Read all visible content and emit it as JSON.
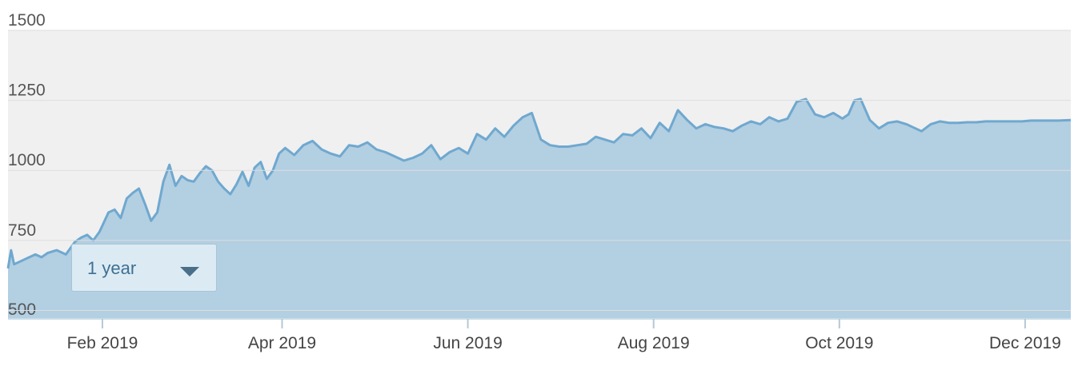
{
  "chart_data": {
    "type": "area",
    "y_ticks": [
      "500",
      "750",
      "1000",
      "1250",
      "1500"
    ],
    "ylim": [
      470,
      1500
    ],
    "x_tick_labels": [
      "Feb 2019",
      "Apr 2019",
      "Jun 2019",
      "Aug 2019",
      "Oct 2019",
      "Dec 2019"
    ],
    "x_tick_dates": [
      "2019-02-01",
      "2019-04-01",
      "2019-06-01",
      "2019-08-01",
      "2019-10-01",
      "2019-12-01"
    ],
    "xlim": [
      "2019-01-01",
      "2019-12-16"
    ],
    "grid": true,
    "colors": {
      "line": "#6fa8cf",
      "fill": "#b3cfe2",
      "plot_background_upper": "#f0f0f0",
      "gridline": "#dedede"
    },
    "series": [
      {
        "x": [
          "2019-01-01",
          "2019-01-02",
          "2019-01-03",
          "2019-01-05",
          "2019-01-08",
          "2019-01-10",
          "2019-01-12",
          "2019-01-14",
          "2019-01-17",
          "2019-01-20",
          "2019-01-23",
          "2019-01-25",
          "2019-01-27",
          "2019-01-29",
          "2019-01-31",
          "2019-02-03",
          "2019-02-05",
          "2019-02-07",
          "2019-02-09",
          "2019-02-11",
          "2019-02-13",
          "2019-02-15",
          "2019-02-17",
          "2019-02-19",
          "2019-02-21",
          "2019-02-23",
          "2019-02-25",
          "2019-02-27",
          "2019-03-01",
          "2019-03-03",
          "2019-03-05",
          "2019-03-07",
          "2019-03-09",
          "2019-03-11",
          "2019-03-13",
          "2019-03-15",
          "2019-03-17",
          "2019-03-19",
          "2019-03-21",
          "2019-03-23",
          "2019-03-25",
          "2019-03-27",
          "2019-03-29",
          "2019-03-31",
          "2019-04-02",
          "2019-04-05",
          "2019-04-08",
          "2019-04-11",
          "2019-04-14",
          "2019-04-17",
          "2019-04-20",
          "2019-04-23",
          "2019-04-26",
          "2019-04-29",
          "2019-05-02",
          "2019-05-05",
          "2019-05-08",
          "2019-05-11",
          "2019-05-14",
          "2019-05-17",
          "2019-05-20",
          "2019-05-23",
          "2019-05-26",
          "2019-05-29",
          "2019-06-01",
          "2019-06-04",
          "2019-06-07",
          "2019-06-10",
          "2019-06-13",
          "2019-06-16",
          "2019-06-19",
          "2019-06-22",
          "2019-06-25",
          "2019-06-28",
          "2019-07-01",
          "2019-07-04",
          "2019-07-07",
          "2019-07-10",
          "2019-07-13",
          "2019-07-16",
          "2019-07-19",
          "2019-07-22",
          "2019-07-25",
          "2019-07-28",
          "2019-07-31",
          "2019-08-03",
          "2019-08-06",
          "2019-08-09",
          "2019-08-12",
          "2019-08-15",
          "2019-08-18",
          "2019-08-21",
          "2019-08-24",
          "2019-08-27",
          "2019-08-30",
          "2019-09-02",
          "2019-09-05",
          "2019-09-08",
          "2019-09-11",
          "2019-09-14",
          "2019-09-17",
          "2019-09-20",
          "2019-09-23",
          "2019-09-26",
          "2019-09-29",
          "2019-10-02",
          "2019-10-04",
          "2019-10-06",
          "2019-10-08",
          "2019-10-11",
          "2019-10-14",
          "2019-10-17",
          "2019-10-20",
          "2019-10-23",
          "2019-10-26",
          "2019-10-28",
          "2019-10-31",
          "2019-11-03",
          "2019-11-06",
          "2019-11-09",
          "2019-11-12",
          "2019-11-15",
          "2019-11-18",
          "2019-11-21",
          "2019-11-24",
          "2019-11-27",
          "2019-11-30",
          "2019-12-03",
          "2019-12-06",
          "2019-12-09",
          "2019-12-12",
          "2019-12-16"
        ],
        "values": [
          650,
          715,
          665,
          675,
          690,
          700,
          690,
          705,
          715,
          700,
          745,
          760,
          770,
          750,
          780,
          850,
          860,
          830,
          900,
          920,
          935,
          880,
          820,
          850,
          960,
          1020,
          945,
          980,
          965,
          960,
          990,
          1015,
          1000,
          960,
          935,
          915,
          950,
          995,
          945,
          1010,
          1030,
          970,
          1000,
          1060,
          1080,
          1055,
          1090,
          1105,
          1075,
          1060,
          1050,
          1090,
          1085,
          1100,
          1075,
          1065,
          1050,
          1035,
          1045,
          1060,
          1090,
          1040,
          1065,
          1080,
          1060,
          1130,
          1110,
          1150,
          1120,
          1160,
          1190,
          1205,
          1110,
          1090,
          1085,
          1085,
          1090,
          1095,
          1120,
          1110,
          1100,
          1130,
          1125,
          1150,
          1115,
          1170,
          1140,
          1215,
          1180,
          1150,
          1165,
          1155,
          1150,
          1140,
          1160,
          1175,
          1165,
          1190,
          1175,
          1185,
          1245,
          1255,
          1200,
          1190,
          1205,
          1185,
          1200,
          1250,
          1255,
          1180,
          1150,
          1170,
          1175,
          1165,
          1150,
          1140,
          1165,
          1175,
          1170,
          1170,
          1172,
          1172,
          1175,
          1175,
          1175,
          1175,
          1175,
          1178,
          1178,
          1178,
          1178,
          1180
        ]
      }
    ]
  },
  "range_selector": {
    "label": "1 year"
  }
}
